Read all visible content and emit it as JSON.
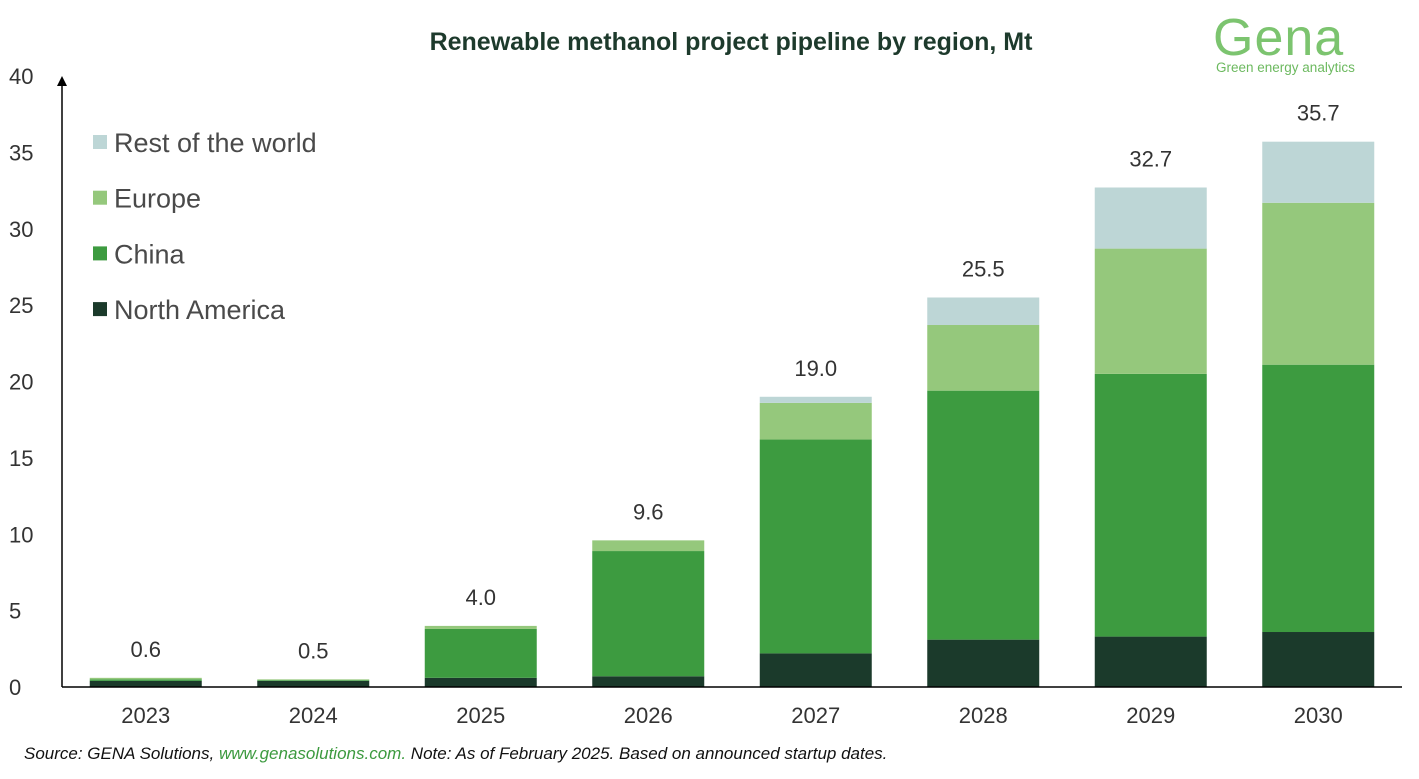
{
  "header": {
    "title": "Renewable methanol project pipeline by region, Mt"
  },
  "logo": {
    "word": "Gena",
    "tagline": "Green energy analytics"
  },
  "footer": {
    "source_prefix": "Source: GENA Solutions, ",
    "source_link": "www.genasolutions.com.",
    "note": " Note: As of February 2025. Based on announced startup dates."
  },
  "chart_data": {
    "type": "bar",
    "stacked": true,
    "title": "Renewable methanol project pipeline by region, Mt",
    "xlabel": "",
    "ylabel": "",
    "ylim": [
      0,
      40
    ],
    "yticks": [
      0,
      5,
      10,
      15,
      20,
      25,
      30,
      35,
      40
    ],
    "grid": false,
    "legend_position": "top-left",
    "categories": [
      "2023",
      "2024",
      "2025",
      "2026",
      "2027",
      "2028",
      "2029",
      "2030"
    ],
    "series": [
      {
        "name": "North America",
        "color": "#1b3a2b",
        "values": [
          0.4,
          0.4,
          0.6,
          0.7,
          2.2,
          3.1,
          3.3,
          3.6
        ]
      },
      {
        "name": "China",
        "color": "#3d9b40",
        "values": [
          0.1,
          0.05,
          3.2,
          8.2,
          14.0,
          16.3,
          17.2,
          17.5
        ]
      },
      {
        "name": "Europe",
        "color": "#95c87c",
        "values": [
          0.1,
          0.05,
          0.2,
          0.7,
          2.4,
          4.3,
          8.2,
          10.6
        ]
      },
      {
        "name": "Rest of the world",
        "color": "#bdd6d6",
        "values": [
          0.0,
          0.0,
          0.0,
          0.0,
          0.4,
          1.8,
          4.0,
          4.0
        ]
      }
    ],
    "totals": [
      "0.6",
      "0.5",
      "4.0",
      "9.6",
      "19.0",
      "25.5",
      "32.7",
      "35.7"
    ],
    "legend_order": [
      "Rest of the world",
      "Europe",
      "China",
      "North America"
    ]
  }
}
